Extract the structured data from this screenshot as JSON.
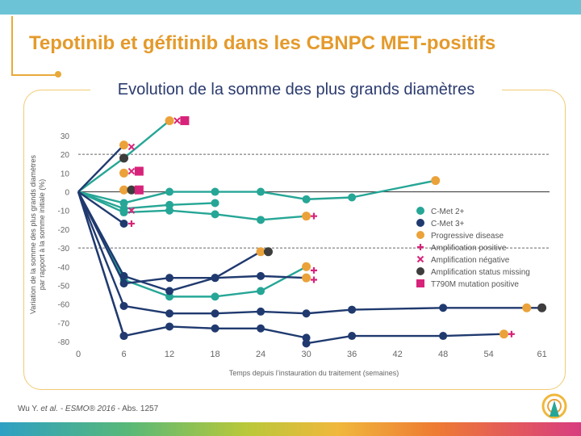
{
  "header": {
    "title": "Tepotinib et géfitinib dans les CBNPC MET-positifs"
  },
  "chart_data": {
    "type": "line",
    "title": "Evolution de la somme des plus grands diamètres",
    "xlabel": "Temps depuis l’instauration du traitement (semaines)",
    "ylabel": [
      "Variation de la somme des plus grands diamètres",
      "par rapport à la somme initiale (%)"
    ],
    "xlim": [
      0,
      62
    ],
    "ylim": [
      -80,
      30
    ],
    "x_ticks": [
      0,
      6,
      12,
      18,
      24,
      30,
      36,
      42,
      48,
      54,
      61
    ],
    "y_ticks": [
      30,
      20,
      10,
      0,
      -10,
      -20,
      -30,
      -40,
      -50,
      -60,
      -70,
      -80
    ],
    "reference_lines": [
      20,
      0,
      -30
    ],
    "colors": {
      "cmet2": "#26a696",
      "cmet3": "#203a6f",
      "progressive": "#eba23a",
      "marker": "#d8237a",
      "missing": "#3d3d3d"
    },
    "series": [
      {
        "group": "C-Met 2+",
        "points": [
          [
            0,
            0
          ],
          [
            6,
            18
          ],
          [
            12,
            38
          ]
        ]
      },
      {
        "group": "C-Met 2+",
        "points": [
          [
            0,
            0
          ],
          [
            6,
            -6
          ],
          [
            12,
            0
          ],
          [
            18,
            0
          ],
          [
            24,
            0
          ],
          [
            30,
            -4
          ],
          [
            36,
            -3
          ],
          [
            47,
            6
          ]
        ]
      },
      {
        "group": "C-Met 2+",
        "points": [
          [
            0,
            0
          ],
          [
            6,
            -9
          ],
          [
            12,
            -7
          ],
          [
            18,
            -6
          ]
        ]
      },
      {
        "group": "C-Met 2+",
        "points": [
          [
            0,
            0
          ],
          [
            6,
            -11
          ],
          [
            12,
            -10
          ],
          [
            18,
            -12
          ],
          [
            24,
            -15
          ],
          [
            30,
            -13
          ]
        ]
      },
      {
        "group": "C-Met 2+",
        "points": [
          [
            0,
            0
          ],
          [
            6,
            -47
          ],
          [
            12,
            -56
          ],
          [
            18,
            -56
          ],
          [
            24,
            -53
          ],
          [
            30,
            -40
          ]
        ]
      },
      {
        "group": "C-Met 3+",
        "points": [
          [
            0,
            0
          ],
          [
            6,
            25
          ]
        ]
      },
      {
        "group": "C-Met 3+",
        "points": [
          [
            0,
            0
          ],
          [
            6,
            -17
          ]
        ]
      },
      {
        "group": "C-Met 3+",
        "points": [
          [
            0,
            0
          ],
          [
            6,
            -45
          ],
          [
            12,
            -53
          ],
          [
            18,
            -46
          ],
          [
            24,
            -32
          ]
        ]
      },
      {
        "group": "C-Met 3+",
        "points": [
          [
            0,
            0
          ],
          [
            6,
            -49
          ],
          [
            12,
            -46
          ],
          [
            18,
            -46
          ],
          [
            24,
            -45
          ],
          [
            30,
            -46
          ]
        ]
      },
      {
        "group": "C-Met 3+",
        "points": [
          [
            0,
            0
          ],
          [
            6,
            -61
          ],
          [
            12,
            -65
          ],
          [
            18,
            -65
          ],
          [
            24,
            -64
          ],
          [
            30,
            -65
          ],
          [
            36,
            -63
          ],
          [
            48,
            -62
          ],
          [
            61,
            -62
          ]
        ]
      },
      {
        "group": "C-Met 3+",
        "points": [
          [
            0,
            0
          ],
          [
            6,
            -77
          ],
          [
            12,
            -72
          ],
          [
            18,
            -73
          ],
          [
            24,
            -73
          ],
          [
            30,
            -78
          ]
        ]
      },
      {
        "group": "C-Met 3+",
        "points": [
          [
            0,
            0
          ],
          [
            6,
            -77
          ]
        ]
      },
      {
        "group": "C-Met 3+",
        "points": [
          [
            30,
            -81
          ],
          [
            36,
            -77
          ],
          [
            48,
            -77
          ],
          [
            56,
            -76
          ]
        ]
      }
    ],
    "progressive_points": [
      [
        6,
        25
      ],
      [
        6,
        10
      ],
      [
        6,
        1
      ],
      [
        12,
        38
      ],
      [
        24,
        -32
      ],
      [
        30,
        -13
      ],
      [
        30,
        -40
      ],
      [
        30,
        -46
      ],
      [
        47,
        6
      ],
      [
        59,
        -62
      ],
      [
        56,
        -76
      ]
    ],
    "missing_points": [
      [
        6,
        18
      ],
      [
        7,
        1
      ],
      [
        25,
        -32
      ],
      [
        61,
        -62
      ]
    ],
    "t790m_points": [
      [
        8,
        11
      ],
      [
        8,
        1
      ],
      [
        14,
        38
      ]
    ],
    "positive_points": [
      [
        7,
        -17
      ],
      [
        31,
        -13
      ],
      [
        31,
        -42
      ],
      [
        31,
        -47
      ],
      [
        57,
        -76
      ]
    ],
    "negative_points": [
      [
        7,
        24
      ],
      [
        7,
        11
      ],
      [
        7,
        -10
      ],
      [
        13,
        38
      ]
    ],
    "legend": {
      "position": "right",
      "items": [
        {
          "label": "C-Met 2+",
          "marker": "circle",
          "color": "#26a696"
        },
        {
          "label": "C-Met 3+",
          "marker": "circle",
          "color": "#203a6f"
        },
        {
          "label": "Progressive disease",
          "marker": "circle",
          "color": "#eba23a"
        },
        {
          "label": "Amplification positive",
          "marker": "plus",
          "color": "#d8237a"
        },
        {
          "label": "Amplification négative",
          "marker": "cross",
          "color": "#d8237a"
        },
        {
          "label": "Amplification status missing",
          "marker": "circle",
          "color": "#3d3d3d"
        },
        {
          "label": "T790M mutation positive",
          "marker": "square",
          "color": "#d8237a"
        }
      ]
    }
  },
  "footnote": {
    "author": "Wu Y. ",
    "etal": "et al.",
    "source": " - ESMO® 2016",
    "ref": " - Abs. 1257"
  }
}
